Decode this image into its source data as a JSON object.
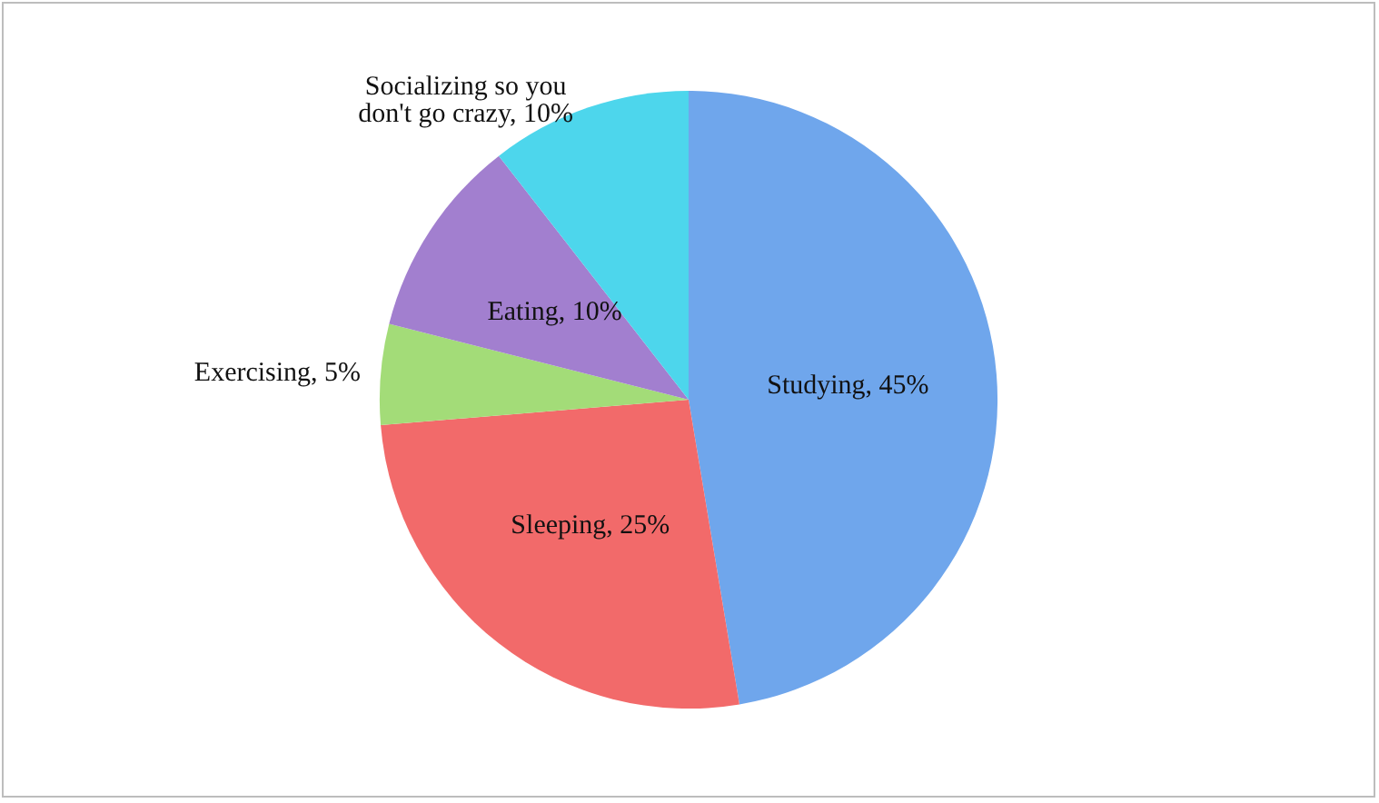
{
  "chart_data": {
    "type": "pie",
    "categories": [
      "Studying",
      "Sleeping",
      "Exercising",
      "Eating",
      "Socializing so you don't go crazy"
    ],
    "values": [
      45,
      25,
      5,
      10,
      10
    ],
    "value_labels": [
      "45%",
      "25%",
      "5%",
      "10%",
      "10%"
    ],
    "colors": [
      "#6fa6ec",
      "#f26a6a",
      "#a3dc78",
      "#a27fcf",
      "#4dd6ec"
    ],
    "legend": false
  }
}
